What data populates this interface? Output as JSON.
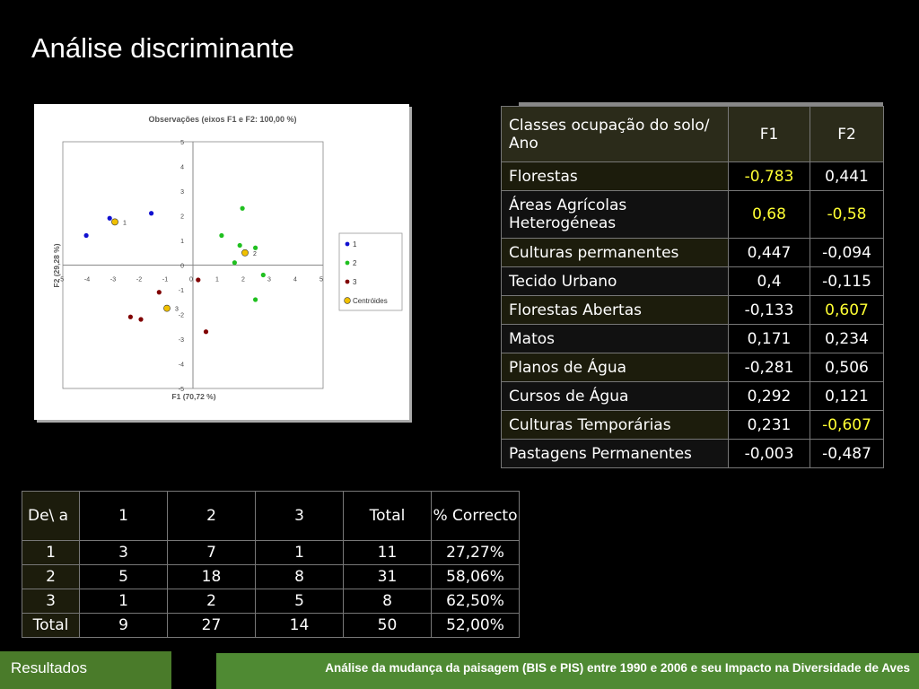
{
  "page_title": "Análise discriminante",
  "chart_data": {
    "type": "scatter",
    "title": "Observações (eixos F1 e F2: 100,00 %)",
    "xlabel": "F1 (70,72 %)",
    "ylabel": "F2 (29,28 %)",
    "xlim": [
      -5,
      5
    ],
    "ylim": [
      -5,
      5
    ],
    "xticks": [
      "-5",
      "-4",
      "-3",
      "-2",
      "-1",
      "0",
      "1",
      "2",
      "3",
      "4",
      "5"
    ],
    "yticks": [
      "-5",
      "-4",
      "-3",
      "-2",
      "-1",
      "0",
      "1",
      "2",
      "3",
      "4",
      "5"
    ],
    "legend_position": "right",
    "legend": [
      "1",
      "2",
      "3",
      "Centróides"
    ],
    "series": [
      {
        "name": "1",
        "color": "#1010d0",
        "points": [
          [
            -4.1,
            1.2
          ],
          [
            -3.2,
            1.9
          ],
          [
            -1.6,
            2.1
          ]
        ]
      },
      {
        "name": "2",
        "color": "#20c020",
        "points": [
          [
            1.9,
            2.3
          ],
          [
            1.1,
            1.2
          ],
          [
            1.8,
            0.8
          ],
          [
            2.4,
            0.7
          ],
          [
            1.6,
            0.1
          ],
          [
            2.7,
            -0.4
          ],
          [
            2.4,
            -1.4
          ]
        ]
      },
      {
        "name": "3",
        "color": "#800000",
        "points": [
          [
            -1.3,
            -1.1
          ],
          [
            -2.4,
            -2.1
          ],
          [
            -2.0,
            -2.2
          ],
          [
            0.2,
            -0.6
          ],
          [
            0.5,
            -2.7
          ]
        ]
      },
      {
        "name": "Centróides",
        "color": "#f0c000",
        "points": [
          [
            -3.0,
            1.75
          ],
          [
            2.0,
            0.5
          ],
          [
            -1.0,
            -1.75
          ]
        ],
        "labels": [
          "1",
          "2",
          "3"
        ]
      }
    ]
  },
  "loadings_table": {
    "header": [
      "Classes ocupação do solo/ Ano",
      "F1",
      "F2"
    ],
    "rows": [
      {
        "label": "Florestas",
        "f1": "-0,783",
        "f2": "0,441",
        "hl1": true,
        "hl2": false
      },
      {
        "label": "Áreas Agrícolas Heterogéneas",
        "f1": "0,68",
        "f2": "-0,58",
        "hl1": true,
        "hl2": true
      },
      {
        "label": "Culturas permanentes",
        "f1": "0,447",
        "f2": "-0,094",
        "hl1": false,
        "hl2": false
      },
      {
        "label": "Tecido Urbano",
        "f1": "0,4",
        "f2": "-0,115",
        "hl1": false,
        "hl2": false
      },
      {
        "label": "Florestas Abertas",
        "f1": "-0,133",
        "f2": "0,607",
        "hl1": false,
        "hl2": true
      },
      {
        "label": "Matos",
        "f1": "0,171",
        "f2": "0,234",
        "hl1": false,
        "hl2": false
      },
      {
        "label": "Planos de Água",
        "f1": "-0,281",
        "f2": "0,506",
        "hl1": false,
        "hl2": false
      },
      {
        "label": "Cursos de Água",
        "f1": "0,292",
        "f2": "0,121",
        "hl1": false,
        "hl2": false
      },
      {
        "label": "Culturas Temporárias",
        "f1": "0,231",
        "f2": "-0,607",
        "hl1": false,
        "hl2": true
      },
      {
        "label": "Pastagens Permanentes",
        "f1": "-0,003",
        "f2": "-0,487",
        "hl1": false,
        "hl2": false
      }
    ]
  },
  "confusion_table": {
    "header": [
      "De\\ a",
      "1",
      "2",
      "3",
      "Total",
      "% Correcto"
    ],
    "rows": [
      [
        "1",
        "3",
        "7",
        "1",
        "11",
        "27,27%"
      ],
      [
        "2",
        "5",
        "18",
        "8",
        "31",
        "58,06%"
      ],
      [
        "3",
        "1",
        "2",
        "5",
        "8",
        "62,50%"
      ],
      [
        "Total",
        "9",
        "27",
        "14",
        "50",
        "52,00%"
      ]
    ]
  },
  "footer": {
    "section": "Resultados",
    "caption": "Análise da mudança da paisagem (BIS e PIS) entre 1990 e 2006 e seu Impacto na Diversidade de Aves"
  },
  "colors": {
    "highlight": "#ffff33",
    "footer_green": "#4f8a33"
  }
}
